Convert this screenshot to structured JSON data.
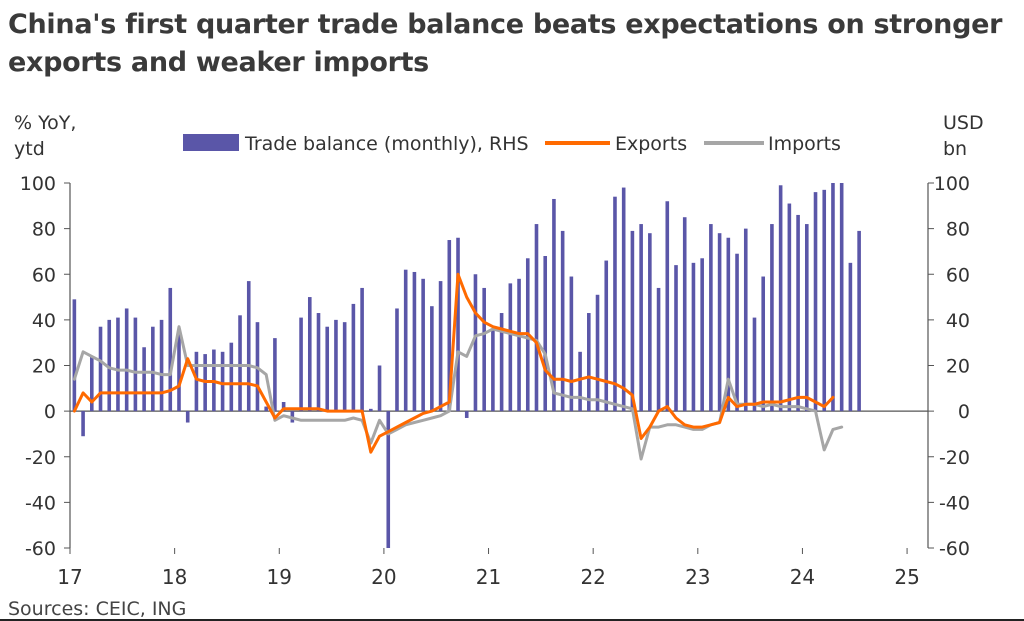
{
  "title_line1": "China's first quarter trade balance beats expectations on stronger",
  "title_line2": "exports and weaker imports",
  "source": "Sources: CEIC, ING",
  "left_axis_title": [
    "% YoY,",
    "ytd"
  ],
  "right_axis_title": [
    "USD",
    "bn"
  ],
  "colors": {
    "bar": "#5a56a8",
    "exports": "#ff6a00",
    "imports": "#a6a6a6",
    "axis": "#555555"
  },
  "chart_data": {
    "type": "bar+line",
    "title": "China's first quarter trade balance beats expectations on stronger exports and weaker imports",
    "x_ticks": [
      "17",
      "18",
      "19",
      "20",
      "21",
      "22",
      "23",
      "24",
      "25"
    ],
    "x_range": [
      2017,
      2025.2
    ],
    "ylim_left": [
      -60,
      100
    ],
    "ylim_right": [
      -60,
      100
    ],
    "y_ticks": [
      100,
      80,
      60,
      40,
      20,
      0,
      -20,
      -40,
      -60
    ],
    "legend": [
      {
        "label": "Trade balance (monthly), RHS",
        "kind": "bar"
      },
      {
        "label": "Exports",
        "kind": "line"
      },
      {
        "label": "Imports",
        "kind": "line"
      }
    ],
    "series": [
      {
        "name": "Trade balance (monthly), RHS",
        "axis": "right",
        "start": 2017,
        "step_months": 1,
        "values": [
          49,
          -11,
          24,
          37,
          40,
          41,
          45,
          41,
          28,
          37,
          40,
          54,
          34,
          -5,
          26,
          25,
          27,
          26,
          30,
          42,
          57,
          39,
          2,
          32,
          4,
          -5,
          41,
          50,
          43,
          37,
          40,
          39,
          47,
          54,
          1,
          20,
          -60,
          45,
          62,
          61,
          58,
          46,
          57,
          75,
          76,
          -3,
          60,
          54,
          36,
          43,
          56,
          58,
          67,
          82,
          68,
          93,
          79,
          59,
          26,
          43,
          51,
          66,
          94,
          98,
          79,
          82,
          78,
          54,
          92,
          64,
          85,
          65,
          67,
          82,
          78,
          76,
          69,
          80,
          41,
          59,
          82,
          99,
          91,
          86,
          82,
          96,
          97,
          100,
          100,
          65,
          79
        ]
      },
      {
        "name": "Exports",
        "axis": "left",
        "start": 2017.0,
        "step_months": 1,
        "values": [
          0,
          8,
          4,
          8,
          8,
          8,
          8,
          8,
          8,
          8,
          8,
          9,
          11,
          23,
          14,
          13,
          13,
          12,
          12,
          12,
          12,
          11,
          4,
          -3,
          1,
          1,
          1,
          1,
          1,
          0,
          0,
          0,
          0,
          0,
          -18,
          -11,
          -9,
          -7,
          -5,
          -3,
          -1,
          0,
          2,
          4,
          60,
          50,
          43,
          39,
          37,
          36,
          35,
          34,
          34,
          30,
          18,
          14,
          14,
          13,
          14,
          15,
          14,
          13,
          12,
          10,
          7,
          -12,
          -7,
          0,
          2,
          -3,
          -6,
          -7,
          -7,
          -6,
          -5,
          6,
          2,
          3,
          3,
          4,
          4,
          4,
          5,
          6,
          6,
          4,
          2,
          6
        ]
      },
      {
        "name": "Imports",
        "axis": "left",
        "start": 2017.0,
        "step_months": 1,
        "values": [
          14,
          26,
          24,
          22,
          19,
          18,
          18,
          17,
          17,
          17,
          16,
          16,
          37,
          20,
          20,
          20,
          20,
          20,
          20,
          20,
          20,
          19,
          16,
          -4,
          -2,
          -3,
          -4,
          -4,
          -4,
          -4,
          -4,
          -4,
          -3,
          -4,
          -14,
          -4,
          -10,
          -8,
          -6,
          -5,
          -4,
          -3,
          -2,
          0,
          26,
          24,
          33,
          34,
          36,
          35,
          34,
          33,
          32,
          31,
          25,
          8,
          7,
          6,
          6,
          5,
          5,
          4,
          3,
          2,
          1,
          -21,
          -7,
          -7,
          -6,
          -6,
          -7,
          -8,
          -8,
          -6,
          -5,
          14,
          3,
          3,
          3,
          2,
          3,
          2,
          2,
          2,
          1,
          0,
          -17,
          -8,
          -7
        ]
      }
    ]
  }
}
